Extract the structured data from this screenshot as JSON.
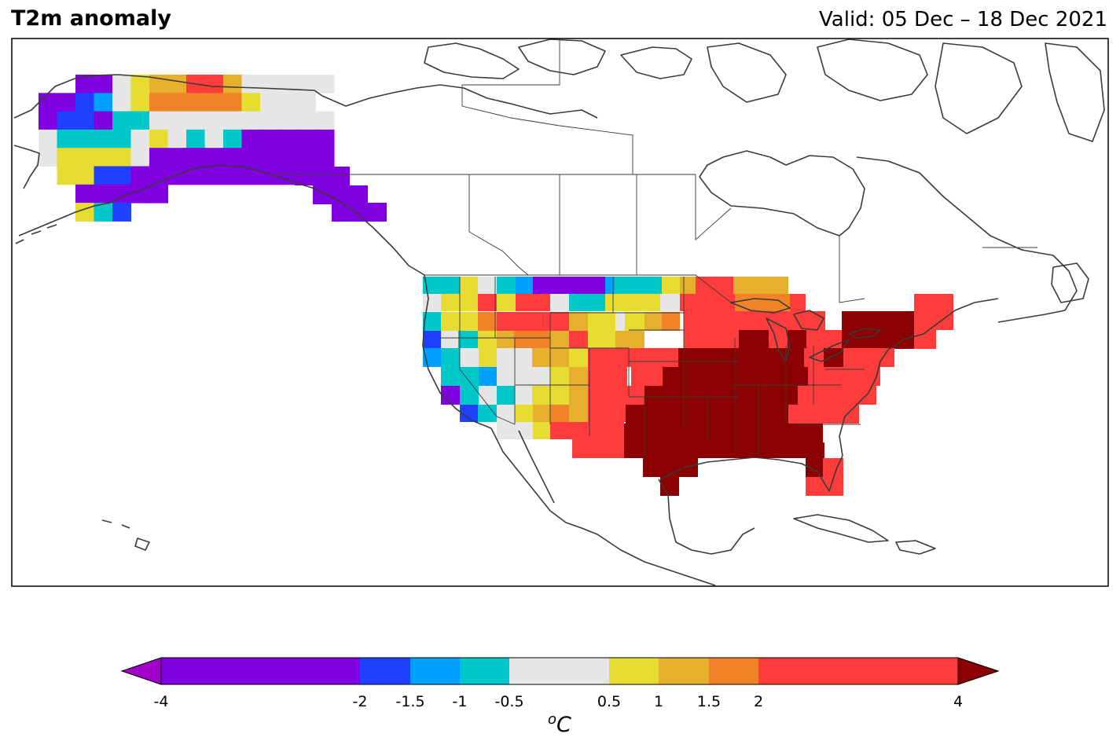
{
  "title": "T2m anomaly",
  "valid": "Valid: 05 Dec – 18 Dec 2021",
  "colorbar": {
    "unit_sup": "o",
    "unit": "C",
    "ticks": [
      {
        "value": -4,
        "label": "-4"
      },
      {
        "value": -2,
        "label": "-2"
      },
      {
        "value": -1.5,
        "label": "-1.5"
      },
      {
        "value": -1,
        "label": "-1"
      },
      {
        "value": -0.5,
        "label": "-0.5"
      },
      {
        "value": 0.5,
        "label": "0.5"
      },
      {
        "value": 1,
        "label": "1"
      },
      {
        "value": 1.5,
        "label": "1.5"
      },
      {
        "value": 2,
        "label": "2"
      },
      {
        "value": 4,
        "label": "4"
      }
    ],
    "bins": [
      {
        "from": -4,
        "to": -2,
        "color": "#8000e0"
      },
      {
        "from": -2,
        "to": -1.5,
        "color": "#2040ff"
      },
      {
        "from": -1.5,
        "to": -1,
        "color": "#00a0ff"
      },
      {
        "from": -1,
        "to": -0.5,
        "color": "#00c8c8"
      },
      {
        "from": -0.5,
        "to": 0.5,
        "color": "#e6e6e6"
      },
      {
        "from": 0.5,
        "to": 1,
        "color": "#e6dc32"
      },
      {
        "from": 1,
        "to": 1.5,
        "color": "#e6af2d"
      },
      {
        "from": 1.5,
        "to": 2,
        "color": "#f08228"
      },
      {
        "from": 2,
        "to": 4,
        "color": "#ff3c3c"
      }
    ],
    "under_color": "#a000c8",
    "over_color": "#8b0000"
  },
  "anomaly_grid": {
    "alaska": [
      "..PP wYOOR RO ggggg",
      "PPBC gYXXX XXYg gg",
      "PBBP TTggg ggggg gg",
      "gTTT TgYgT gTPPP PP",
      "gYYY YgPPP PPPPP PP",
      ".YYB BPPPP PPPPP PP",
      "..PP PPP.. ........",
      "..YT B............."
    ]
  }
}
